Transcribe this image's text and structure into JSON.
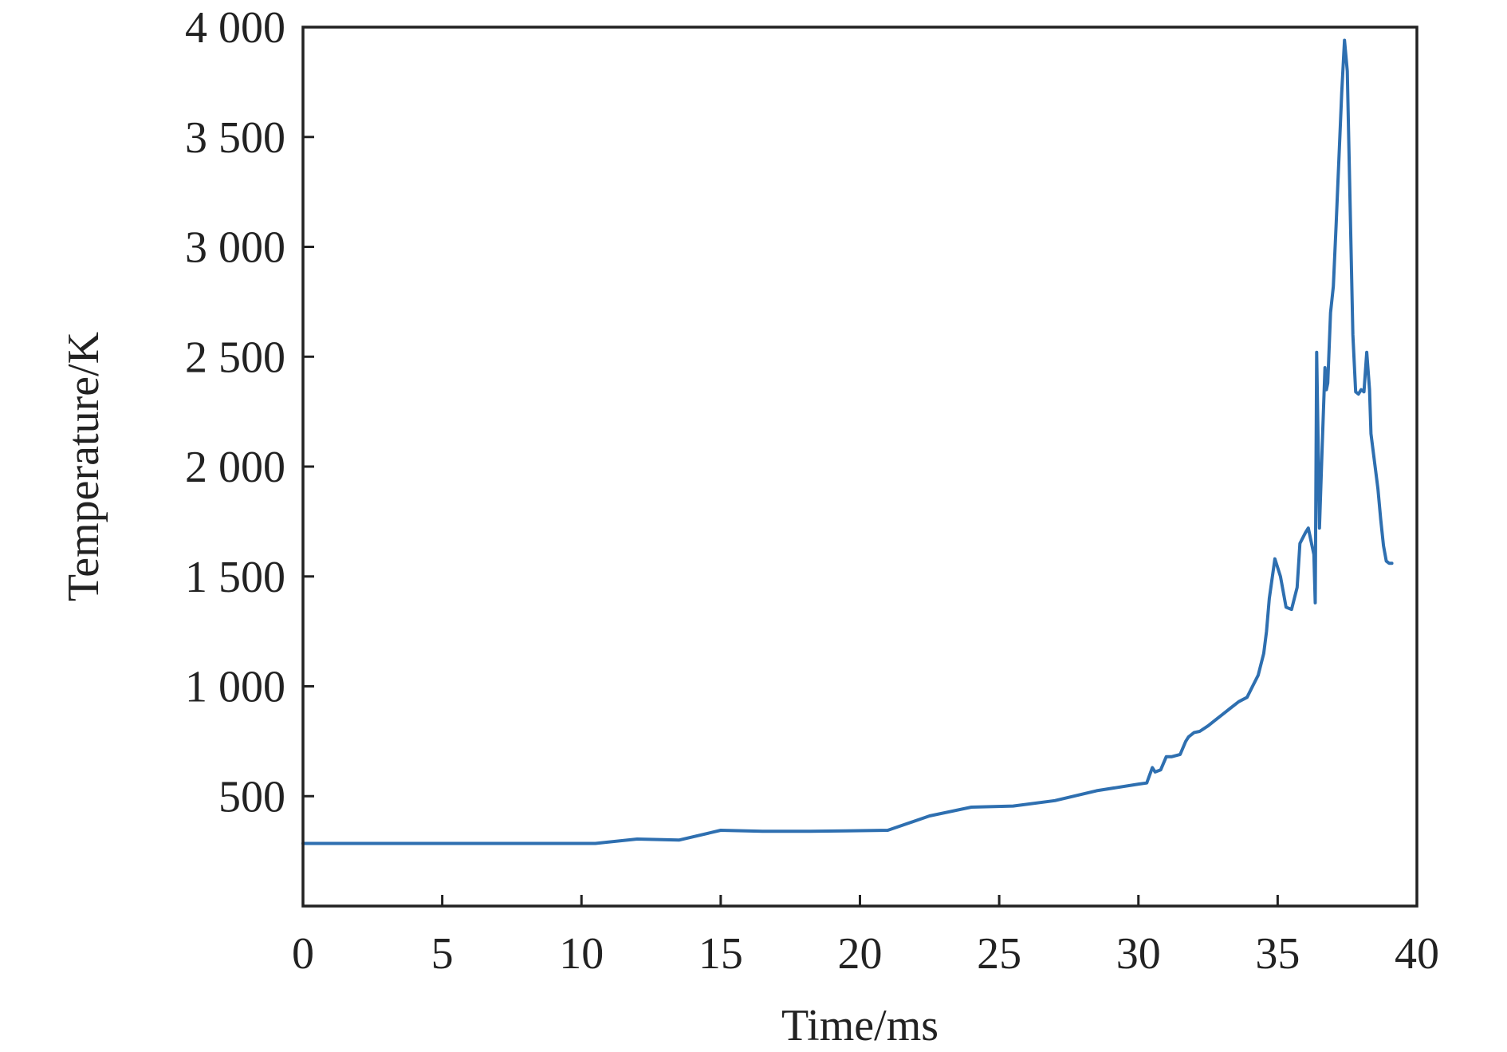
{
  "chart_data": {
    "type": "line",
    "title": "",
    "xlabel": "Time/ms",
    "ylabel": "Temperature/K",
    "xlim": [
      0,
      40
    ],
    "ylim": [
      0,
      4000
    ],
    "xticks": [
      0,
      5,
      10,
      15,
      20,
      25,
      30,
      35,
      40
    ],
    "xtick_labels": [
      "0",
      "5",
      "10",
      "15",
      "20",
      "25",
      "30",
      "35",
      "40"
    ],
    "yticks": [
      500,
      1000,
      1500,
      2000,
      2500,
      3000,
      3500,
      4000
    ],
    "ytick_labels": [
      "500",
      "1 000",
      "1 500",
      "2 000",
      "2 500",
      "3 000",
      "3 500",
      "4 000"
    ],
    "grid": false,
    "legend": "none",
    "colors": {
      "series": "#2e6fb0",
      "axis": "#222222"
    },
    "series": [
      {
        "x": [
          0,
          5,
          10.5,
          12,
          13.5,
          15,
          16.5,
          18,
          19.5,
          21,
          22.5,
          24,
          25.5,
          27,
          28.5,
          30,
          30.3,
          30.5,
          30.6,
          30.8,
          31,
          31.2,
          31.5,
          31.7,
          31.8,
          32,
          32.2,
          32.5,
          32.8,
          33,
          33.3,
          33.6,
          33.9,
          34.1,
          34.3,
          34.5,
          34.6,
          34.7,
          34.9,
          35.1,
          35.3,
          35.5,
          35.7,
          35.8,
          36.0,
          36.1,
          36.2,
          36.3,
          36.35,
          36.4,
          36.5,
          36.6,
          36.7,
          36.75,
          36.8,
          36.9,
          37.0,
          37.1,
          37.2,
          37.3,
          37.4,
          37.5,
          37.6,
          37.7,
          37.8,
          37.9,
          38.0,
          38.1,
          38.2,
          38.3,
          38.35,
          38.4,
          38.5,
          38.6,
          38.7,
          38.8,
          38.9,
          39.0,
          39.1
        ],
        "y": [
          285,
          285,
          285,
          305,
          300,
          345,
          340,
          340,
          342,
          345,
          410,
          450,
          455,
          480,
          525,
          555,
          560,
          630,
          610,
          620,
          680,
          680,
          690,
          750,
          770,
          790,
          795,
          820,
          850,
          870,
          900,
          930,
          950,
          1000,
          1050,
          1150,
          1250,
          1400,
          1580,
          1500,
          1360,
          1350,
          1450,
          1650,
          1700,
          1720,
          1660,
          1600,
          1380,
          2520,
          1720,
          2100,
          2450,
          2350,
          2380,
          2700,
          2820,
          3100,
          3400,
          3700,
          3940,
          3800,
          3200,
          2600,
          2340,
          2330,
          2350,
          2340,
          2520,
          2350,
          2150,
          2100,
          2000,
          1900,
          1760,
          1640,
          1570,
          1560,
          1560
        ]
      }
    ]
  }
}
